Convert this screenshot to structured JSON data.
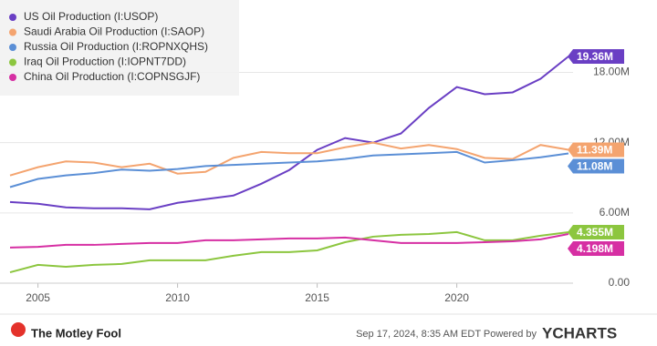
{
  "chart_data": {
    "type": "line",
    "x": [
      2004,
      2005,
      2006,
      2007,
      2008,
      2009,
      2010,
      2011,
      2012,
      2013,
      2014,
      2015,
      2016,
      2017,
      2018,
      2019,
      2020,
      2021,
      2022,
      2023,
      2024
    ],
    "xlim": [
      2004,
      2024
    ],
    "xticks": [
      2005,
      2010,
      2015,
      2020
    ],
    "ylim": [
      0,
      23.4
    ],
    "yticks": [
      {
        "value": 0,
        "label": "0.00"
      },
      {
        "value": 6,
        "label": "6.00M"
      },
      {
        "value": 12,
        "label": "12.00M"
      },
      {
        "value": 18,
        "label": "18.00M"
      }
    ],
    "grid": true,
    "legend": "top-left",
    "series": [
      {
        "name": "US Oil Production (I:USOP)",
        "color": "#6a3fc4",
        "values": [
          6.93,
          6.78,
          6.47,
          6.39,
          6.39,
          6.31,
          6.86,
          7.17,
          7.48,
          8.49,
          9.66,
          11.38,
          12.39,
          12.0,
          12.78,
          14.96,
          16.75,
          16.13,
          16.29,
          17.45,
          19.36
        ],
        "value_labels": [
          null,
          null,
          null,
          null,
          null,
          null,
          null,
          null,
          null,
          null,
          null,
          null,
          null,
          null,
          null,
          null,
          null,
          null,
          null,
          null,
          "19.36M"
        ]
      },
      {
        "name": "Saudi Arabia Oil Production (I:SAOP)",
        "color": "#f4a46f",
        "values": [
          9.2,
          9.9,
          10.4,
          10.3,
          9.9,
          10.2,
          9.35,
          9.5,
          10.7,
          11.2,
          11.1,
          11.1,
          11.6,
          12.0,
          11.5,
          11.8,
          11.45,
          10.7,
          10.6,
          11.8,
          11.39
        ],
        "value_labels": [
          null,
          null,
          null,
          null,
          null,
          null,
          null,
          null,
          null,
          null,
          null,
          null,
          null,
          null,
          null,
          null,
          null,
          null,
          null,
          null,
          "11.39M"
        ]
      },
      {
        "name": "Russia Oil Production (I:ROPNXQHS)",
        "color": "#5b8fd6",
        "values": [
          8.2,
          8.9,
          9.2,
          9.4,
          9.7,
          9.6,
          9.75,
          10.0,
          10.1,
          10.2,
          10.3,
          10.4,
          10.6,
          10.9,
          11.0,
          11.1,
          11.2,
          10.3,
          10.5,
          10.75,
          11.08
        ],
        "value_labels": [
          null,
          null,
          null,
          null,
          null,
          null,
          null,
          null,
          null,
          null,
          null,
          null,
          null,
          null,
          null,
          null,
          null,
          null,
          null,
          null,
          "11.08M"
        ]
      },
      {
        "name": "Iraq Oil Production (I:IOPNT7DD)",
        "color": "#8cc63f",
        "values": [
          0.93,
          1.56,
          1.4,
          1.56,
          1.64,
          1.95,
          1.95,
          1.95,
          2.34,
          2.65,
          2.65,
          2.8,
          3.5,
          3.97,
          4.13,
          4.2,
          4.36,
          3.66,
          3.66,
          4.05,
          4.355
        ],
        "value_labels": [
          null,
          null,
          null,
          null,
          null,
          null,
          null,
          null,
          null,
          null,
          null,
          null,
          null,
          null,
          null,
          null,
          null,
          null,
          null,
          null,
          "4.355M"
        ]
      },
      {
        "name": "China Oil Production (I:COPNSGJF)",
        "color": "#d62fa3",
        "values": [
          3.04,
          3.1,
          3.27,
          3.27,
          3.35,
          3.43,
          3.43,
          3.66,
          3.66,
          3.74,
          3.82,
          3.82,
          3.9,
          3.66,
          3.43,
          3.43,
          3.43,
          3.5,
          3.58,
          3.74,
          4.198
        ],
        "value_labels": [
          null,
          null,
          null,
          null,
          null,
          null,
          null,
          null,
          null,
          null,
          null,
          null,
          null,
          null,
          null,
          null,
          null,
          null,
          null,
          null,
          "4.198M"
        ]
      }
    ]
  },
  "footer": {
    "timestamp": "Sep 17, 2024, 8:35 AM EDT  Powered by",
    "brand": "YCHARTS",
    "logo": "The Motley Fool"
  }
}
